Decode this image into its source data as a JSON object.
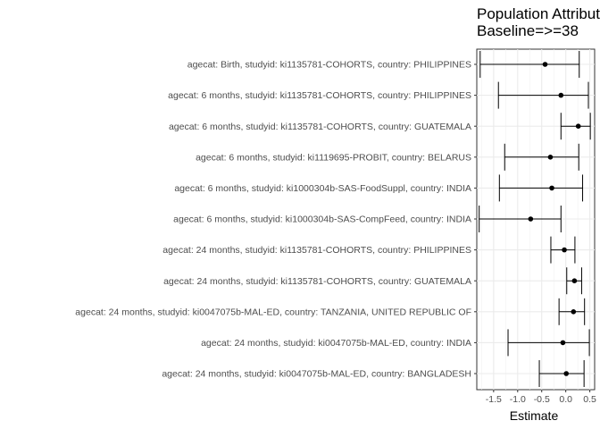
{
  "chart_data": {
    "type": "forest",
    "title_line1": "Population Attributable",
    "title_line2": "Baseline=>=38",
    "xlabel": "Estimate",
    "xlim": [
      -1.85,
      0.6
    ],
    "xticks": [
      "-1.5",
      "-1.0",
      "-0.5",
      "0.0",
      "0.5"
    ],
    "xtick_values": [
      -1.5,
      -1.0,
      -0.5,
      0.0,
      0.5
    ],
    "grid": true,
    "rows": [
      {
        "label": "agecat: Birth, studyid: ki1135781-COHORTS, country: PHILIPPINES",
        "estimate": -0.43,
        "lower": -1.78,
        "upper": 0.28
      },
      {
        "label": "agecat: 6 months, studyid: ki1135781-COHORTS, country: PHILIPPINES",
        "estimate": -0.1,
        "lower": -1.4,
        "upper": 0.47
      },
      {
        "label": "agecat: 6 months, studyid: ki1135781-COHORTS, country: GUATEMALA",
        "estimate": 0.26,
        "lower": -0.1,
        "upper": 0.51
      },
      {
        "label": "agecat: 6 months, studyid: ki1119695-PROBIT, country: BELARUS",
        "estimate": -0.32,
        "lower": -1.27,
        "upper": 0.27
      },
      {
        "label": "agecat: 6 months, studyid: ki1000304b-SAS-FoodSuppl, country: INDIA",
        "estimate": -0.29,
        "lower": -1.38,
        "upper": 0.35
      },
      {
        "label": "agecat: 6 months, studyid: ki1000304b-SAS-CompFeed, country: INDIA",
        "estimate": -0.73,
        "lower": -1.8,
        "upper": -0.1
      },
      {
        "label": "agecat: 24 months, studyid: ki1135781-COHORTS, country: PHILIPPINES",
        "estimate": -0.03,
        "lower": -0.31,
        "upper": 0.19
      },
      {
        "label": "agecat: 24 months, studyid: ki1135781-COHORTS, country: GUATEMALA",
        "estimate": 0.18,
        "lower": 0.02,
        "upper": 0.33
      },
      {
        "label": "agecat: 24 months, studyid: ki0047075b-MAL-ED, country: TANZANIA, UNITED REPUBLIC OF",
        "estimate": 0.16,
        "lower": -0.14,
        "upper": 0.39
      },
      {
        "label": "agecat: 24 months, studyid: ki0047075b-MAL-ED, country: INDIA",
        "estimate": -0.06,
        "lower": -1.2,
        "upper": 0.49
      },
      {
        "label": "agecat: 24 months, studyid: ki0047075b-MAL-ED, country: BANGLADESH",
        "estimate": 0.01,
        "lower": -0.55,
        "upper": 0.38
      }
    ]
  }
}
